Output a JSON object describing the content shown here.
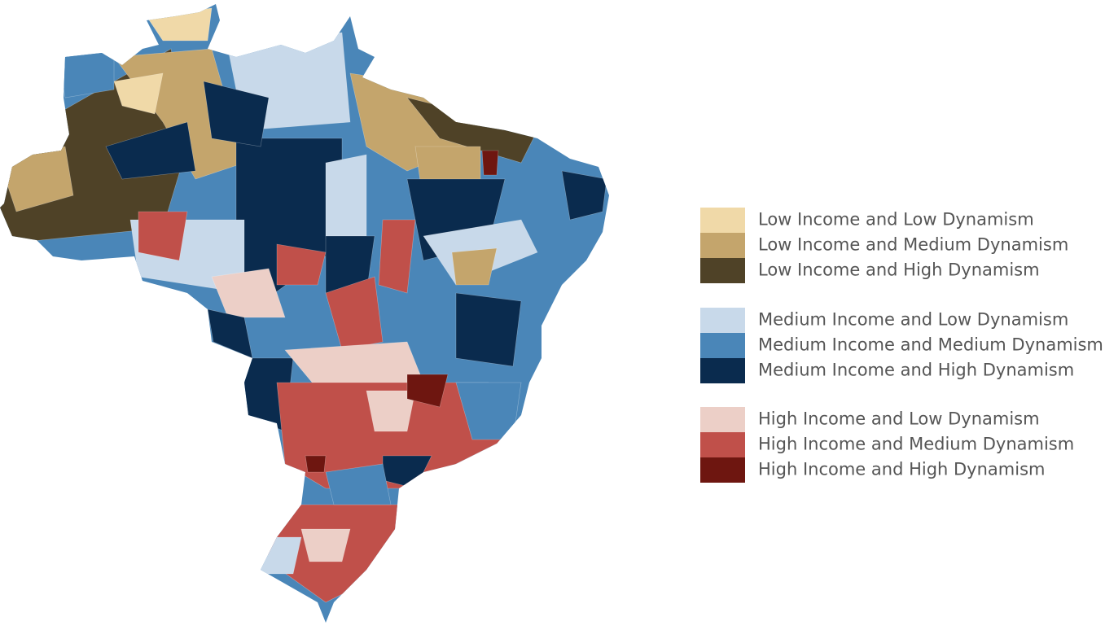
{
  "legend": {
    "groups": [
      {
        "items": [
          {
            "label": "Low Income and Low Dynamism",
            "color": "#f0d9a8"
          },
          {
            "label": "Low Income and Medium Dynamism",
            "color": "#c4a56c"
          },
          {
            "label": "Low Income and High Dynamism",
            "color": "#4f4227"
          }
        ]
      },
      {
        "items": [
          {
            "label": "Medium Income and Low Dynamism",
            "color": "#c8d9ea"
          },
          {
            "label": "Medium Income and Medium Dynamism",
            "color": "#4a86b8"
          },
          {
            "label": "Medium Income and High Dynamism",
            "color": "#0a2b4e"
          }
        ]
      },
      {
        "items": [
          {
            "label": "High Income and Low Dynamism",
            "color": "#eccfc7"
          },
          {
            "label": "High Income and Medium Dynamism",
            "color": "#c0504a"
          },
          {
            "label": "High Income and High Dynamism",
            "color": "#6e1610"
          }
        ]
      }
    ]
  }
}
